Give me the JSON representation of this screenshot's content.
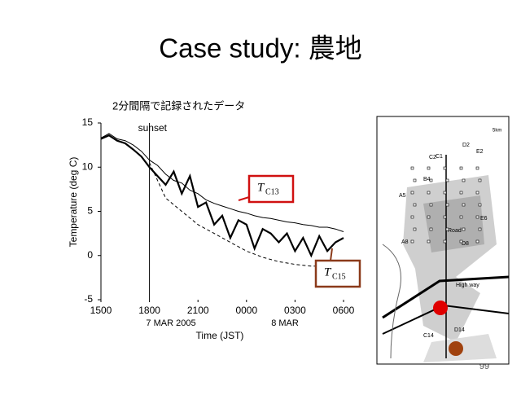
{
  "slide": {
    "title": "Case study: 農地",
    "page_number": "99"
  },
  "chart_data": {
    "type": "line",
    "title": "2分間隔で記録されたデータ",
    "y_label": "Temperature (deg C)",
    "x_label": "Time (JST)",
    "date_labels": [
      "7 MAR 2005",
      "8 MAR"
    ],
    "xlim": [
      15,
      30
    ],
    "xticks": [
      {
        "value": 15,
        "label": "1500"
      },
      {
        "value": 18,
        "label": "1800"
      },
      {
        "value": 21,
        "label": "2100"
      },
      {
        "value": 24,
        "label": "0000"
      },
      {
        "value": 27,
        "label": "0300"
      },
      {
        "value": 30,
        "label": "0600"
      }
    ],
    "ylim": [
      -5,
      15
    ],
    "yticks": [
      -5,
      0,
      5,
      10,
      15
    ],
    "vline": {
      "x": 18,
      "label": "sunset"
    },
    "series": [
      {
        "color": "#000000",
        "width": 1,
        "x": [
          15,
          15.5,
          16,
          16.5,
          17,
          17.5,
          18,
          18.5,
          19,
          19.5,
          20,
          20.5,
          21,
          21.5,
          22,
          22.5,
          23,
          23.5,
          24,
          24.5,
          25,
          25.5,
          26,
          26.5,
          27,
          27.5,
          28,
          28.5,
          29,
          29.5,
          30
        ],
        "values": [
          13.3,
          13.8,
          13.2,
          13.0,
          12.5,
          11.8,
          10.8,
          10.2,
          9.2,
          8.5,
          8.2,
          7.4,
          7.0,
          6.3,
          5.9,
          5.6,
          5.3,
          5.0,
          4.8,
          4.5,
          4.3,
          4.2,
          4.0,
          3.8,
          3.7,
          3.5,
          3.4,
          3.2,
          3.2,
          3.0,
          2.7
        ],
        "annotation": {
          "main": "T",
          "sub": "C13",
          "color": "#d01010"
        }
      },
      {
        "color": "#000000",
        "width": 2.2,
        "x": [
          15,
          15.5,
          16,
          16.5,
          17,
          17.5,
          18,
          18.5,
          19,
          19.5,
          20,
          20.5,
          21,
          21.5,
          22,
          22.5,
          23,
          23.5,
          24,
          24.5,
          25,
          25.5,
          26,
          26.5,
          27,
          27.5,
          28,
          28.5,
          29,
          29.5,
          30
        ],
        "values": [
          13.2,
          13.6,
          13.0,
          12.7,
          12.0,
          11.2,
          10.0,
          9.0,
          8.0,
          9.5,
          7.0,
          9.0,
          5.5,
          6.0,
          3.5,
          4.5,
          2.0,
          4.0,
          3.5,
          0.8,
          3.0,
          2.5,
          1.5,
          2.5,
          0.5,
          2.0,
          0.0,
          2.2,
          0.5,
          1.5,
          2.0
        ],
        "annotation": {
          "main": "T",
          "sub": "C15",
          "color": "#8b3a1a"
        }
      },
      {
        "color": "#000000",
        "width": 1,
        "dash": "4 3",
        "x": [
          18,
          19,
          20,
          21,
          22,
          23,
          24,
          25,
          26,
          27,
          28,
          29
        ],
        "values": [
          10.5,
          6.5,
          5.0,
          3.5,
          2.5,
          1.5,
          0.5,
          -0.2,
          -0.7,
          -1.0,
          -1.2,
          -1.2
        ]
      }
    ]
  },
  "map": {
    "labels": [
      "C1",
      "D2",
      "E2",
      "C2",
      "B4",
      "A5",
      "E6",
      "Road",
      "A8",
      "D8",
      "High way",
      "C14",
      "D14"
    ],
    "scale": "5km"
  }
}
